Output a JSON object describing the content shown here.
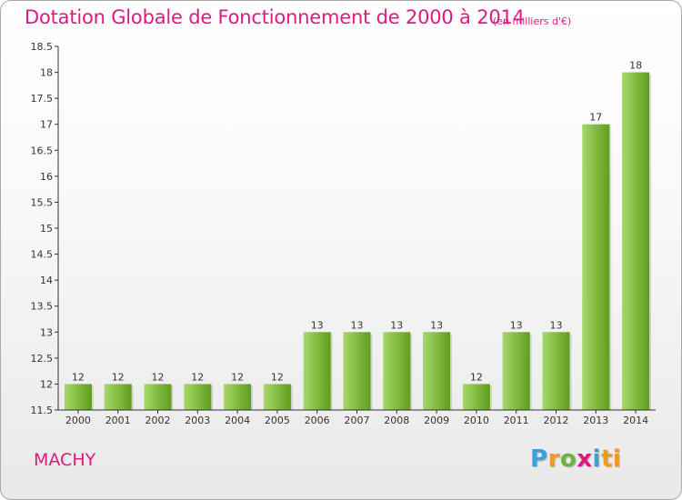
{
  "title": "Dotation Globale de Fonctionnement de 2000 à 2014",
  "unit_note": "(en milliers d'€)",
  "commune": "MACHY",
  "logo": {
    "letters": [
      "P",
      "r",
      "o",
      "x",
      "i",
      "ti"
    ],
    "colors": [
      "#3aa0d8",
      "#f39a1c",
      "#6db33f",
      "#e0197f",
      "#3aa0d8",
      "#f39a1c"
    ]
  },
  "colors": {
    "accent": "#e0197f",
    "bar_light": "#a6d86a",
    "bar_dark": "#5e9e1c",
    "axis": "#333333"
  },
  "chart_data": {
    "type": "bar",
    "title": "Dotation Globale de Fonctionnement de 2000 à 2014",
    "xlabel": "",
    "ylabel": "",
    "categories": [
      "2000",
      "2001",
      "2002",
      "2003",
      "2004",
      "2005",
      "2006",
      "2007",
      "2008",
      "2009",
      "2010",
      "2011",
      "2012",
      "2013",
      "2014"
    ],
    "values": [
      12,
      12,
      12,
      12,
      12,
      12,
      13,
      13,
      13,
      13,
      12,
      13,
      13,
      17,
      18
    ],
    "ylim": [
      11.5,
      18.5
    ],
    "yticks": [
      "11.5",
      "12",
      "12.5",
      "13",
      "13.5",
      "14",
      "14.5",
      "15",
      "15.5",
      "16",
      "16.5",
      "17",
      "17.5",
      "18",
      "18.5"
    ],
    "grid": false,
    "legend": "none"
  }
}
